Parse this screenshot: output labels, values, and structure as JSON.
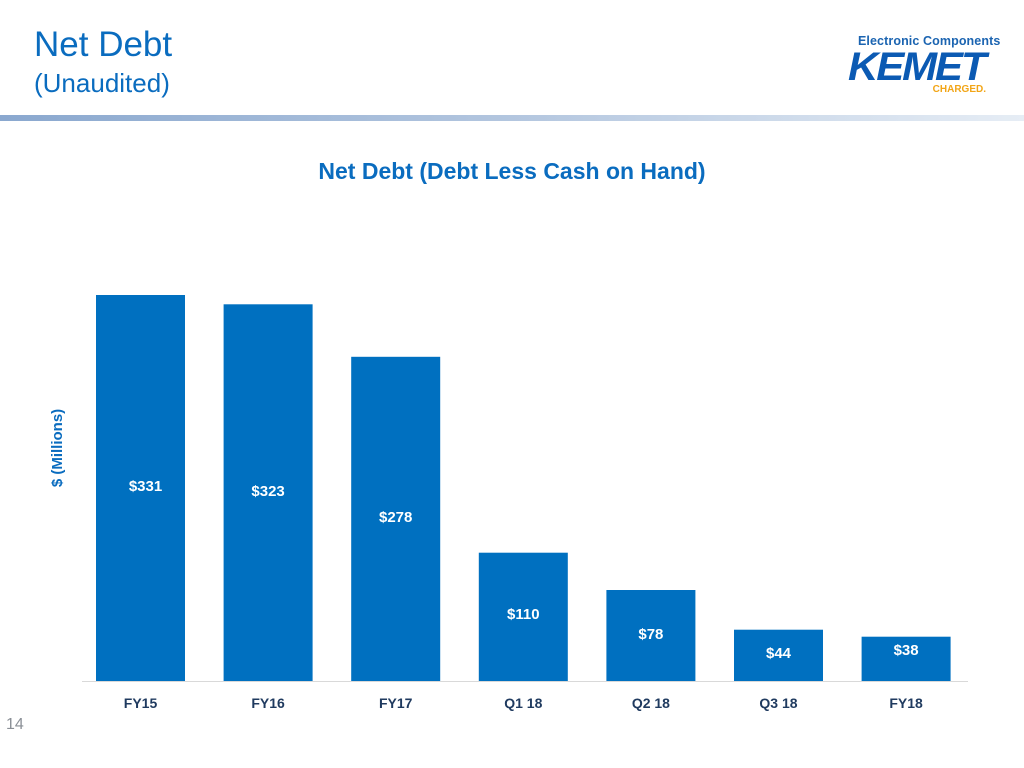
{
  "header": {
    "title": "Net Debt",
    "subtitle": "(Unaudited)"
  },
  "logo": {
    "tagline": "Electronic Components",
    "wordmark": "KEMET",
    "charged": "CHARGED."
  },
  "colors": {
    "accent": "#0a6cbf",
    "bar": "#0070c0",
    "logo_blue": "#0b5ab3",
    "logo_orange": "#f2a516"
  },
  "chart_data": {
    "type": "bar",
    "title": "Net Debt (Debt Less Cash on Hand)",
    "ylabel": "$ (Millions)",
    "categories": [
      "FY15",
      "FY16",
      "FY17",
      "Q1 18",
      "Q2 18",
      "Q3 18",
      "FY18"
    ],
    "values": [
      331,
      323,
      278,
      110,
      78,
      44,
      38
    ],
    "data_labels": [
      "$331",
      "$323",
      "$278",
      "$110",
      "$78",
      "$44",
      "$38"
    ],
    "ylim": [
      0,
      350
    ],
    "grid": false,
    "legend": "none"
  },
  "footer": {
    "page_number": "14"
  }
}
